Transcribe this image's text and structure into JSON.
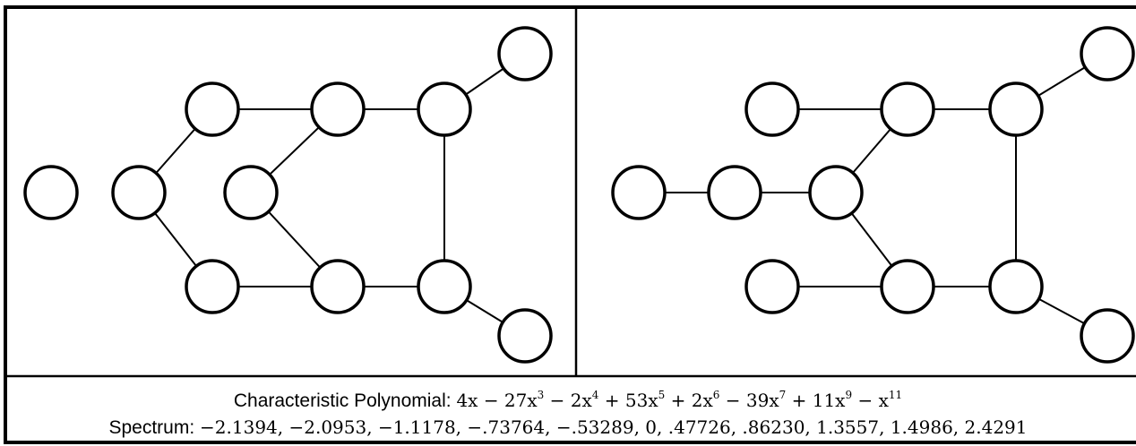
{
  "caption": {
    "polynomial_label": "Characteristic Polynomial: ",
    "polynomial_terms": [
      {
        "text": "4x − 27x",
        "sup": "3"
      },
      {
        "text": " − 2x",
        "sup": "4"
      },
      {
        "text": " + 53x",
        "sup": "5"
      },
      {
        "text": " + 2x",
        "sup": "6"
      },
      {
        "text": " − 39x",
        "sup": "7"
      },
      {
        "text": " + 11x",
        "sup": "9"
      },
      {
        "text": " − x",
        "sup": "11"
      }
    ],
    "spectrum_label": "Spectrum: ",
    "spectrum_values": "−2.1394, −2.0953, −1.1178, −.73764, −.53289, 0, .47726, .86230, 1.3557, 1.4986, 2.4291"
  },
  "graphs": [
    {
      "id": "left",
      "nodes": [
        "a",
        "b",
        "c",
        "d",
        "e",
        "f",
        "g",
        "h",
        "i",
        "j",
        "k",
        "l"
      ],
      "edges": [
        [
          "b",
          "c"
        ],
        [
          "b",
          "d"
        ],
        [
          "c",
          "e"
        ],
        [
          "e",
          "g"
        ],
        [
          "g",
          "l"
        ],
        [
          "e",
          "f"
        ],
        [
          "f",
          "h"
        ],
        [
          "d",
          "i"
        ],
        [
          "i",
          "j"
        ],
        [
          "j",
          "k"
        ],
        [
          "j",
          "g"
        ],
        [
          "h",
          "i"
        ]
      ]
    },
    {
      "id": "right",
      "nodes": [
        "a",
        "b",
        "c",
        "d",
        "e",
        "f",
        "g",
        "h",
        "i",
        "j",
        "k",
        "l"
      ],
      "edges": [
        [
          "a",
          "b"
        ],
        [
          "b",
          "c"
        ],
        [
          "c",
          "e"
        ],
        [
          "d",
          "e"
        ],
        [
          "e",
          "f"
        ],
        [
          "f",
          "k"
        ],
        [
          "f",
          "i"
        ],
        [
          "g",
          "h"
        ],
        [
          "h",
          "i"
        ],
        [
          "i",
          "j"
        ],
        [
          "c",
          "h"
        ],
        [
          "j",
          "l"
        ]
      ]
    }
  ]
}
